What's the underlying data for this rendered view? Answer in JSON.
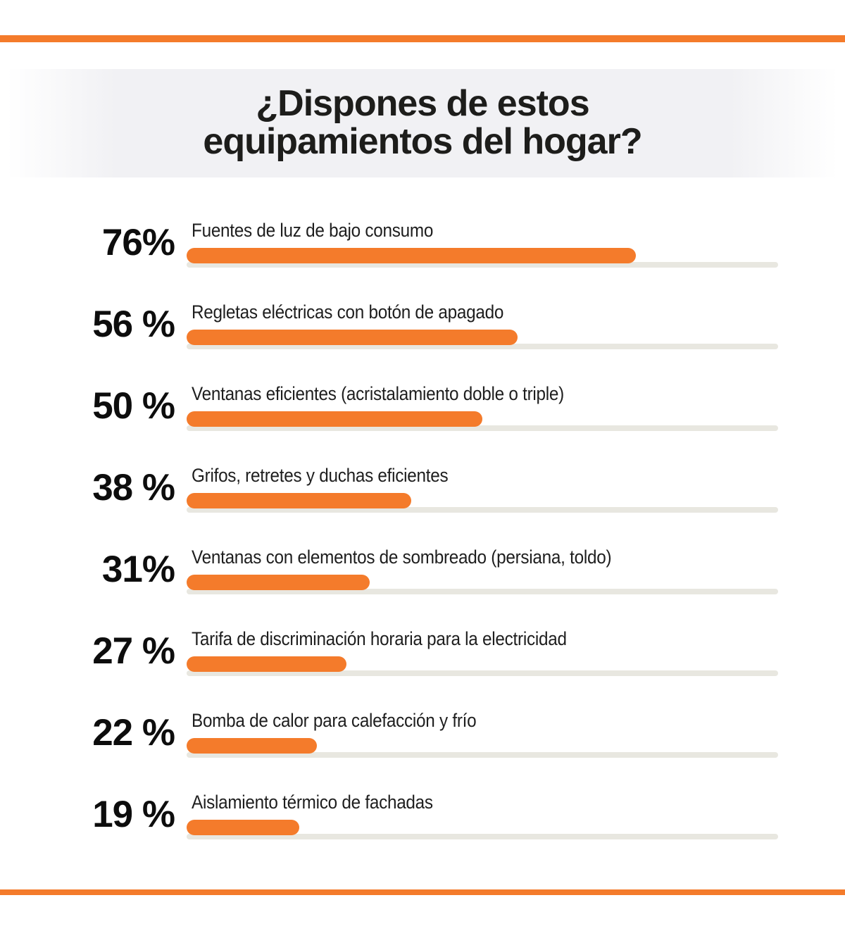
{
  "page": {
    "background": "#ffffff",
    "accent_orange": "#f47b2b",
    "track_gray": "#e8e7e0",
    "title_band_gray": "#f1f1f4",
    "text_color": "#1d1d1b"
  },
  "title": {
    "line1": "¿Dispones de estos",
    "line2": "equipamientos del hogar?"
  },
  "chart_data": {
    "type": "bar",
    "orientation": "horizontal",
    "title": "¿Dispones de estos equipamientos del hogar?",
    "unit": "%",
    "xlim": [
      0,
      100
    ],
    "grid": "off",
    "legend": "none",
    "bar_color": "#f47b2b",
    "track_color": "#e8e7e0",
    "categories": [
      "Fuentes de luz de bajo consumo",
      "Regletas eléctricas con botón de apagado",
      "Ventanas eficientes (acristalamiento doble o triple)",
      "Grifos, retretes y duchas eficientes",
      "Ventanas con elementos de sombreado (persiana, toldo)",
      "Tarifa de discriminación horaria para la electricidad",
      "Bomba de calor para calefacción y frío",
      "Aislamiento térmico de fachadas"
    ],
    "values": [
      76,
      56,
      50,
      38,
      31,
      27,
      22,
      19
    ],
    "value_labels": [
      "76%",
      "56 %",
      "50 %",
      "38 %",
      "31%",
      "27 %",
      "22 %",
      "19 %"
    ]
  }
}
